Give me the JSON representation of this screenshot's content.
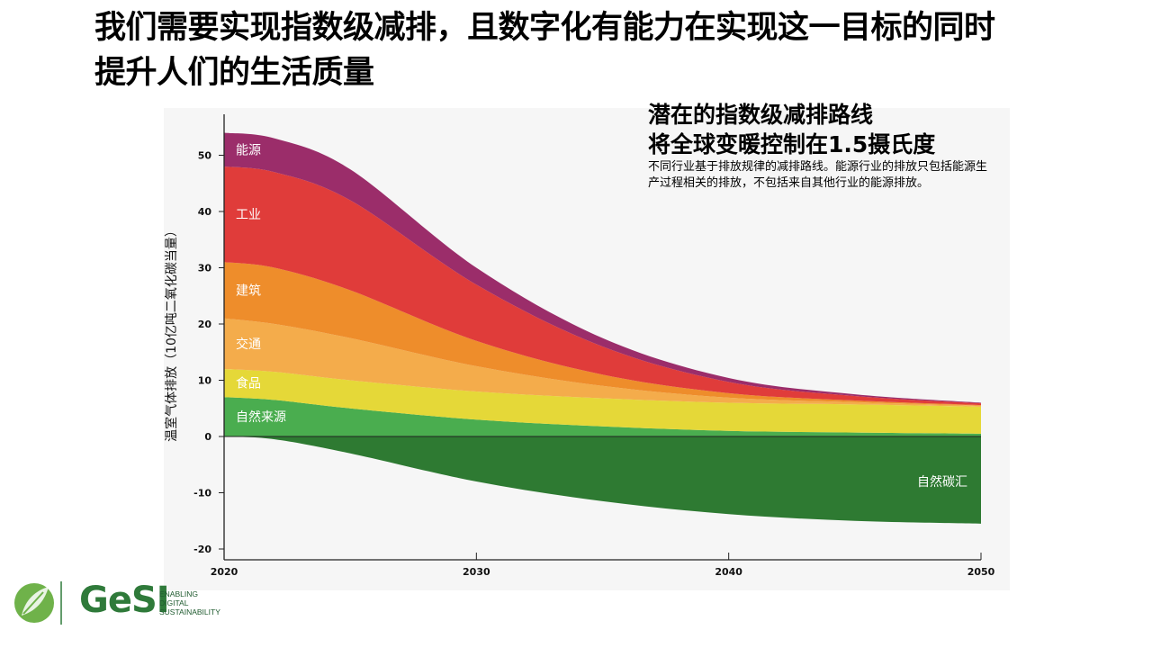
{
  "slide": {
    "title": "我们需要实现指数级减排，且数字化有能力在实现这一目标的同时提升人们的生活质量"
  },
  "panel": {
    "heading_line1": "潜在的指数级减排路线",
    "heading_line2": "将全球变暖控制在1.5摄氏度",
    "note": "不同行业基于排放规律的减排路线。能源行业的排放只包括能源生产过程相关的排放，不包括来自其他行业的能源排放。"
  },
  "logo": {
    "wordmark": "GeSI",
    "tagline": [
      "ENABLING",
      "DIGITAL",
      "SUSTAINABILITY"
    ],
    "icon": "leaf-globe-icon",
    "colors": {
      "brand_green": "#2f7a3a",
      "light_green": "#6fb24a"
    }
  },
  "chart_data": {
    "type": "area",
    "stacked": true,
    "ylabel": "温室气体排放（10亿吨二氧化碳当量）",
    "xlabel": "",
    "xlim": [
      2020,
      2050
    ],
    "ylim": [
      -21,
      55
    ],
    "x_ticks": [
      2020,
      2030,
      2040,
      2050
    ],
    "y_ticks": [
      50,
      40,
      30,
      20,
      10,
      0,
      -10,
      -20
    ],
    "x": [
      2020,
      2022,
      2025,
      2030,
      2035,
      2040,
      2045,
      2050
    ],
    "series": [
      {
        "name": "自然来源",
        "color": "#4aad4f",
        "values": [
          7,
          6.5,
          5,
          3,
          1.8,
          1,
          0.7,
          0.5
        ]
      },
      {
        "name": "食品",
        "color": "#e5d838",
        "values": [
          5,
          5,
          5,
          5,
          5,
          5,
          5,
          4.8
        ]
      },
      {
        "name": "交通",
        "color": "#f4ac4b",
        "values": [
          9,
          8.5,
          7.5,
          4.5,
          2.2,
          0.9,
          0.4,
          0.2
        ]
      },
      {
        "name": "建筑",
        "color": "#ee8d2b",
        "values": [
          10,
          10,
          8.5,
          4.5,
          2,
          0.8,
          0.3,
          0.1
        ]
      },
      {
        "name": "工业",
        "color": "#e03c3a",
        "values": [
          17,
          17,
          16,
          10,
          5,
          2,
          0.8,
          0.3
        ]
      },
      {
        "name": "能源",
        "color": "#9b2d6a",
        "values": [
          6,
          6,
          5.5,
          3,
          1.5,
          0.7,
          0.3,
          0.1
        ]
      }
    ],
    "sink": {
      "name": "自然碳汇",
      "color": "#2e7a32",
      "values": [
        0,
        -0.5,
        -3,
        -8,
        -11.5,
        -13.8,
        -15,
        -15.5
      ]
    }
  }
}
